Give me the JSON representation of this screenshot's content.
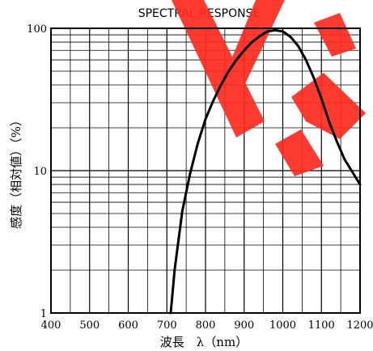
{
  "chart_data": {
    "type": "line",
    "title": "SPECTRAL RESPONSE",
    "xlabel": "波長　λ（nm）",
    "ylabel": "感度（相対値）（%）",
    "x_scale": "linear",
    "y_scale": "log",
    "xlim": [
      400,
      1200
    ],
    "ylim": [
      1,
      100
    ],
    "grid": true,
    "x_ticks": [
      "400",
      "500",
      "600",
      "700",
      "800",
      "900",
      "1000",
      "1100",
      "1200"
    ],
    "y_ticks": [
      "1",
      "10",
      "100"
    ],
    "series": [
      {
        "x": [
          710,
          720,
          740,
          760,
          780,
          800,
          820,
          840,
          860,
          880,
          900,
          920,
          940,
          960,
          980,
          1000,
          1020,
          1040,
          1060,
          1080,
          1100,
          1120,
          1140,
          1160,
          1180,
          1200
        ],
        "y": [
          1,
          2,
          5.2,
          9.5,
          15.5,
          23,
          31,
          40,
          50,
          60,
          70,
          80,
          88,
          95,
          97,
          95,
          87,
          75,
          60,
          45,
          32,
          22,
          16,
          12,
          9.8,
          8
        ]
      }
    ],
    "watermark_color": "#ff2a1e",
    "curve_color": "#000000"
  }
}
